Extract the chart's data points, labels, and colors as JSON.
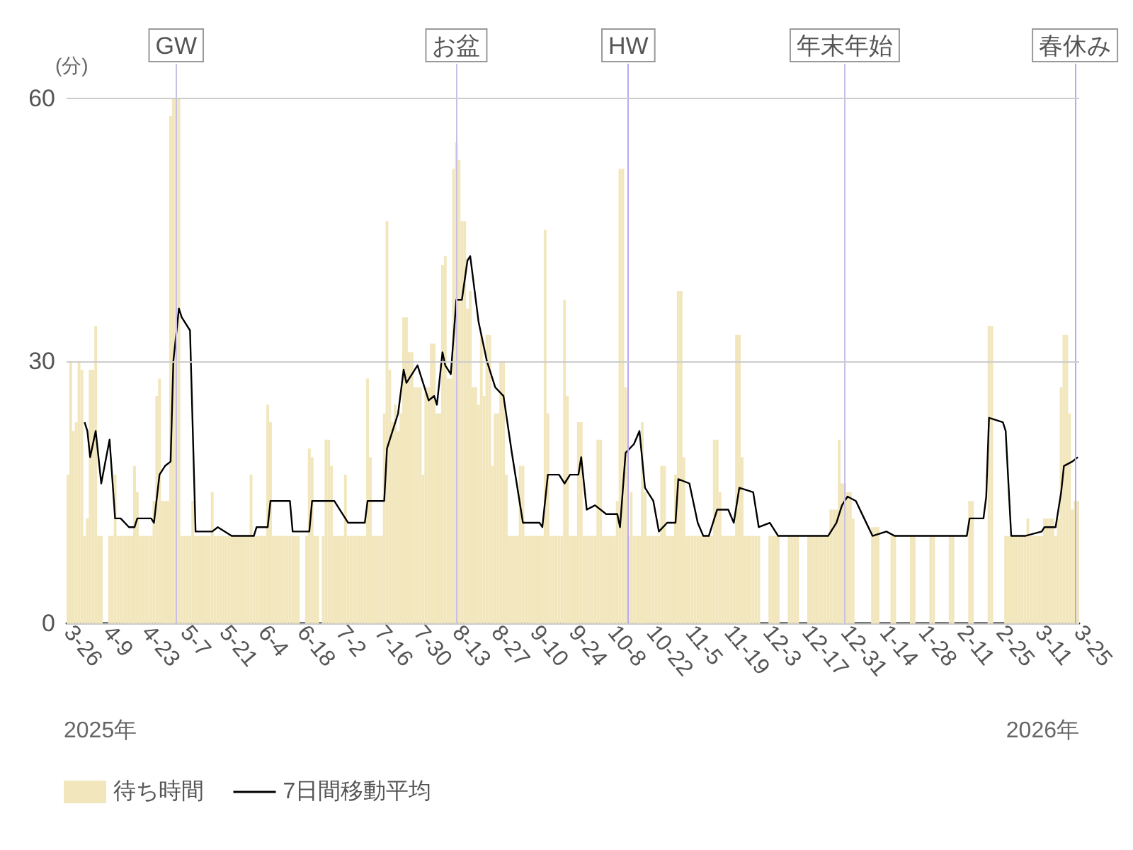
{
  "chart_data": {
    "type": "bar",
    "ylabel": "(分)",
    "legend": "bottom",
    "grid": "y",
    "xlim": [
      "2025-03-25T12:00",
      "2026-03-25T12:00"
    ],
    "xticks": [
      {
        "value": "2025-03-26",
        "label": "3-26"
      },
      {
        "value": "2025-04-09",
        "label": "4-9"
      },
      {
        "value": "2025-04-23",
        "label": "4-23"
      },
      {
        "value": "2025-05-07",
        "label": "5-7"
      },
      {
        "value": "2025-05-21",
        "label": "5-21"
      },
      {
        "value": "2025-06-04",
        "label": "6-4"
      },
      {
        "value": "2025-06-18",
        "label": "6-18"
      },
      {
        "value": "2025-07-02",
        "label": "7-2"
      },
      {
        "value": "2025-07-16",
        "label": "7-16"
      },
      {
        "value": "2025-07-30",
        "label": "7-30"
      },
      {
        "value": "2025-08-13",
        "label": "8-13"
      },
      {
        "value": "2025-08-27",
        "label": "8-27"
      },
      {
        "value": "2025-09-10",
        "label": "9-10"
      },
      {
        "value": "2025-09-24",
        "label": "9-24"
      },
      {
        "value": "2025-10-08",
        "label": "10-8"
      },
      {
        "value": "2025-10-22",
        "label": "10-22"
      },
      {
        "value": "2025-11-05",
        "label": "11-5"
      },
      {
        "value": "2025-11-19",
        "label": "11-19"
      },
      {
        "value": "2025-12-03",
        "label": "12-3"
      },
      {
        "value": "2025-12-17",
        "label": "12-17"
      },
      {
        "value": "2025-12-31",
        "label": "12-31"
      },
      {
        "value": "2026-01-14",
        "label": "1-14"
      },
      {
        "value": "2026-01-28",
        "label": "1-28"
      },
      {
        "value": "2026-02-11",
        "label": "2-11"
      },
      {
        "value": "2026-02-25",
        "label": "2-25"
      },
      {
        "value": "2026-03-11",
        "label": "3-11"
      },
      {
        "value": "2026-03-25",
        "label": "3-25"
      }
    ],
    "ylim": [
      0,
      64
    ],
    "yticks": [
      0,
      30,
      60
    ],
    "annotations": [
      "2025年",
      "2026年"
    ],
    "ref_lines": [
      {
        "axis": "x",
        "value": "2025-05-04",
        "label": "GW",
        "color": "#c8c0e4"
      },
      {
        "axis": "x",
        "value": "2025-08-13",
        "label": "お盆",
        "color": "#c8c0e4"
      },
      {
        "axis": "x",
        "value": "2025-10-14",
        "label": "HW",
        "color": "#b8a8f4"
      },
      {
        "axis": "x",
        "value": "2025-12-31",
        "label": "年末年始",
        "color": "#c8c0e4"
      },
      {
        "axis": "x",
        "value": "2026-03-24",
        "label": "春休み",
        "color": "#b8a8f4"
      }
    ],
    "x": [
      "2025-03-26",
      "2025-03-27",
      "2025-03-28",
      "2025-03-29",
      "2025-03-30",
      "2025-03-31",
      "2025-04-01",
      "2025-04-02",
      "2025-04-03",
      "2025-04-04",
      "2025-04-05",
      "2025-04-06",
      "2025-04-07",
      "2025-04-08",
      "2025-04-09",
      "2025-04-10",
      "2025-04-11",
      "2025-04-12",
      "2025-04-13",
      "2025-04-14",
      "2025-04-15",
      "2025-04-16",
      "2025-04-17",
      "2025-04-18",
      "2025-04-19",
      "2025-04-20",
      "2025-04-21",
      "2025-04-22",
      "2025-04-23",
      "2025-04-24",
      "2025-04-25",
      "2025-04-26",
      "2025-04-27",
      "2025-04-28",
      "2025-04-29",
      "2025-04-30",
      "2025-05-01",
      "2025-05-02",
      "2025-05-03",
      "2025-05-04",
      "2025-05-05",
      "2025-05-06",
      "2025-05-07",
      "2025-05-08",
      "2025-05-09",
      "2025-05-10",
      "2025-05-11",
      "2025-05-12",
      "2025-05-13",
      "2025-05-14",
      "2025-05-15",
      "2025-05-16",
      "2025-05-17",
      "2025-05-18",
      "2025-05-19",
      "2025-05-20",
      "2025-05-21",
      "2025-05-22",
      "2025-05-23",
      "2025-05-24",
      "2025-05-25",
      "2025-05-26",
      "2025-05-27",
      "2025-05-28",
      "2025-05-29",
      "2025-05-30",
      "2025-05-31",
      "2025-06-01",
      "2025-06-02",
      "2025-06-03",
      "2025-06-04",
      "2025-06-05",
      "2025-06-06",
      "2025-06-07",
      "2025-06-08",
      "2025-06-09",
      "2025-06-10",
      "2025-06-11",
      "2025-06-12",
      "2025-06-13",
      "2025-06-14",
      "2025-06-15",
      "2025-06-16",
      "2025-06-17",
      "2025-06-18",
      "2025-06-19",
      "2025-06-20",
      "2025-06-21",
      "2025-06-22",
      "2025-06-23",
      "2025-06-24",
      "2025-06-25",
      "2025-06-26",
      "2025-06-27",
      "2025-06-28",
      "2025-06-29",
      "2025-06-30",
      "2025-07-01",
      "2025-07-02",
      "2025-07-03",
      "2025-07-04",
      "2025-07-05",
      "2025-07-06",
      "2025-07-07",
      "2025-07-08",
      "2025-07-09",
      "2025-07-10",
      "2025-07-11",
      "2025-07-12",
      "2025-07-13",
      "2025-07-14",
      "2025-07-15",
      "2025-07-16",
      "2025-07-17",
      "2025-07-18",
      "2025-07-19",
      "2025-07-20",
      "2025-07-21",
      "2025-07-22",
      "2025-07-23",
      "2025-07-24",
      "2025-07-25",
      "2025-07-26",
      "2025-07-27",
      "2025-07-28",
      "2025-07-29",
      "2025-07-30",
      "2025-07-31",
      "2025-08-01",
      "2025-08-02",
      "2025-08-03",
      "2025-08-04",
      "2025-08-05",
      "2025-08-06",
      "2025-08-07",
      "2025-08-08",
      "2025-08-09",
      "2025-08-10",
      "2025-08-11",
      "2025-08-12",
      "2025-08-13",
      "2025-08-14",
      "2025-08-15",
      "2025-08-16",
      "2025-08-17",
      "2025-08-18",
      "2025-08-19",
      "2025-08-20",
      "2025-08-21",
      "2025-08-22",
      "2025-08-23",
      "2025-08-24",
      "2025-08-25",
      "2025-08-26",
      "2025-08-27",
      "2025-08-28",
      "2025-08-29",
      "2025-08-30",
      "2025-08-31",
      "2025-09-01",
      "2025-09-02",
      "2025-09-03",
      "2025-09-04",
      "2025-09-05",
      "2025-09-06",
      "2025-09-07",
      "2025-09-08",
      "2025-09-09",
      "2025-09-10",
      "2025-09-11",
      "2025-09-12",
      "2025-09-13",
      "2025-09-14",
      "2025-09-15",
      "2025-09-16",
      "2025-09-17",
      "2025-09-18",
      "2025-09-19",
      "2025-09-20",
      "2025-09-21",
      "2025-09-22",
      "2025-09-23",
      "2025-09-24",
      "2025-09-25",
      "2025-09-26",
      "2025-09-27",
      "2025-09-28",
      "2025-09-29",
      "2025-09-30",
      "2025-10-01",
      "2025-10-02",
      "2025-10-03",
      "2025-10-04",
      "2025-10-05",
      "2025-10-06",
      "2025-10-07",
      "2025-10-08",
      "2025-10-09",
      "2025-10-10",
      "2025-10-11",
      "2025-10-12",
      "2025-10-13",
      "2025-10-14",
      "2025-10-15",
      "2025-10-16",
      "2025-10-17",
      "2025-10-18",
      "2025-10-19",
      "2025-10-20",
      "2025-10-21",
      "2025-10-22",
      "2025-10-23",
      "2025-10-24",
      "2025-10-25",
      "2025-10-26",
      "2025-10-27",
      "2025-10-28",
      "2025-10-29",
      "2025-10-30",
      "2025-10-31",
      "2025-11-01",
      "2025-11-02",
      "2025-11-03",
      "2025-11-04",
      "2025-11-05",
      "2025-11-06",
      "2025-11-07",
      "2025-11-08",
      "2025-11-09",
      "2025-11-10",
      "2025-11-11",
      "2025-11-12",
      "2025-11-13",
      "2025-11-14",
      "2025-11-15",
      "2025-11-16",
      "2025-11-17",
      "2025-11-18",
      "2025-11-19",
      "2025-11-20",
      "2025-11-21",
      "2025-11-22",
      "2025-11-23",
      "2025-11-24",
      "2025-11-25",
      "2025-11-26",
      "2025-11-27",
      "2025-11-28",
      "2025-11-29",
      "2025-11-30",
      "2025-12-01",
      "2025-12-02",
      "2025-12-03",
      "2025-12-04",
      "2025-12-05",
      "2025-12-06",
      "2025-12-07",
      "2025-12-08",
      "2025-12-09",
      "2025-12-10",
      "2025-12-11",
      "2025-12-12",
      "2025-12-13",
      "2025-12-14",
      "2025-12-15",
      "2025-12-16",
      "2025-12-17",
      "2025-12-18",
      "2025-12-19",
      "2025-12-20",
      "2025-12-21",
      "2025-12-22",
      "2025-12-23",
      "2025-12-24",
      "2025-12-25",
      "2025-12-26",
      "2025-12-27",
      "2025-12-28",
      "2025-12-29",
      "2025-12-30",
      "2025-12-31",
      "2026-01-01",
      "2026-01-02",
      "2026-01-03",
      "2026-01-04",
      "2026-01-05",
      "2026-01-06",
      "2026-01-07",
      "2026-01-08",
      "2026-01-09",
      "2026-01-10",
      "2026-01-11",
      "2026-01-12",
      "2026-01-13",
      "2026-01-14",
      "2026-01-15",
      "2026-01-16",
      "2026-01-17",
      "2026-01-18",
      "2026-01-19",
      "2026-01-20",
      "2026-01-21",
      "2026-01-22",
      "2026-01-23",
      "2026-01-24",
      "2026-01-25",
      "2026-01-26",
      "2026-01-27",
      "2026-01-28",
      "2026-01-29",
      "2026-01-30",
      "2026-01-31",
      "2026-02-01",
      "2026-02-02",
      "2026-02-03",
      "2026-02-04",
      "2026-02-05",
      "2026-02-06",
      "2026-02-07",
      "2026-02-08",
      "2026-02-09",
      "2026-02-10",
      "2026-02-11",
      "2026-02-12",
      "2026-02-13",
      "2026-02-14",
      "2026-02-15",
      "2026-02-16",
      "2026-02-17",
      "2026-02-18",
      "2026-02-19",
      "2026-02-20",
      "2026-02-21",
      "2026-02-22",
      "2026-02-23",
      "2026-02-24",
      "2026-02-25",
      "2026-02-26",
      "2026-02-27",
      "2026-02-28",
      "2026-03-01",
      "2026-03-02",
      "2026-03-03",
      "2026-03-04",
      "2026-03-05",
      "2026-03-06",
      "2026-03-07",
      "2026-03-08",
      "2026-03-09",
      "2026-03-10",
      "2026-03-11",
      "2026-03-12",
      "2026-03-13",
      "2026-03-14",
      "2026-03-15",
      "2026-03-16",
      "2026-03-17",
      "2026-03-18",
      "2026-03-19",
      "2026-03-20",
      "2026-03-21",
      "2026-03-22",
      "2026-03-23",
      "2026-03-24",
      "2026-03-25"
    ],
    "series": [
      {
        "name": "待ち時間",
        "color": "#f2e6bc",
        "values": [
          17,
          30,
          22,
          23,
          30,
          29,
          10,
          12,
          29,
          29,
          34,
          10,
          10,
          null,
          null,
          10,
          10,
          17,
          10,
          10,
          10,
          10,
          10,
          10,
          18,
          15,
          10,
          10,
          10,
          10,
          10,
          14,
          26,
          28,
          14,
          14,
          14,
          58,
          60,
          60,
          60,
          10,
          10,
          10,
          10,
          14,
          10,
          10,
          10,
          10,
          10,
          10,
          15,
          10,
          10,
          10,
          10,
          10,
          10,
          10,
          10,
          10,
          10,
          10,
          10,
          10,
          17,
          10,
          10,
          10,
          10,
          10,
          25,
          23,
          10,
          10,
          10,
          10,
          10,
          10,
          10,
          10,
          10,
          10,
          null,
          null,
          10,
          20,
          19,
          10,
          10,
          null,
          10,
          21,
          21,
          18,
          10,
          10,
          10,
          10,
          17,
          10,
          10,
          10,
          10,
          10,
          10,
          10,
          28,
          19,
          10,
          10,
          10,
          10,
          24,
          46,
          29,
          23,
          25,
          22,
          24,
          35,
          35,
          31,
          31,
          27,
          27,
          27,
          17,
          27,
          27,
          32,
          32,
          24,
          24,
          41,
          42,
          28,
          28,
          52,
          55,
          53,
          46,
          46,
          36,
          38,
          27,
          27,
          25,
          33,
          26,
          33,
          33,
          18,
          24,
          24,
          30,
          30,
          17,
          10,
          10,
          10,
          10,
          18,
          18,
          10,
          10,
          10,
          10,
          10,
          10,
          10,
          45,
          24,
          10,
          10,
          10,
          10,
          10,
          37,
          26,
          10,
          10,
          10,
          23,
          23,
          10,
          10,
          10,
          10,
          10,
          21,
          21,
          10,
          10,
          10,
          10,
          10,
          14,
          52,
          52,
          27,
          10,
          15,
          10,
          10,
          10,
          23,
          15,
          10,
          10,
          10,
          10,
          10,
          18,
          18,
          10,
          10,
          10,
          17,
          38,
          38,
          19,
          10,
          10,
          10,
          10,
          10,
          10,
          10,
          10,
          10,
          10,
          21,
          21,
          15,
          10,
          10,
          10,
          10,
          10,
          33,
          33,
          19,
          10,
          10,
          10,
          10,
          10,
          10,
          null,
          null,
          null,
          10,
          10,
          10,
          10,
          null,
          null,
          null,
          10,
          10,
          10,
          10,
          null,
          null,
          null,
          10,
          10,
          10,
          10,
          10,
          10,
          10,
          10,
          13,
          13,
          13,
          21,
          16,
          16,
          15,
          15,
          12,
          null,
          null,
          null,
          null,
          null,
          null,
          11,
          11,
          11,
          null,
          null,
          null,
          null,
          10,
          10,
          null,
          null,
          null,
          null,
          null,
          10,
          10,
          null,
          null,
          null,
          null,
          null,
          10,
          10,
          null,
          null,
          null,
          null,
          null,
          10,
          10,
          null,
          null,
          null,
          null,
          null,
          14,
          14,
          null,
          null,
          null,
          null,
          null,
          34,
          34,
          null,
          null,
          null,
          null,
          10,
          10,
          10,
          10,
          10,
          10,
          10,
          10,
          12,
          10,
          10,
          10,
          10,
          10,
          12,
          12,
          12,
          12,
          10,
          12,
          27,
          33,
          33,
          24,
          13,
          14,
          14
        ]
      },
      {
        "name": "7日間移動平均",
        "type": "line",
        "color": "#000000",
        "x": [
          "2025-04-01",
          "2025-04-02",
          "2025-04-03",
          "2025-04-05",
          "2025-04-07",
          "2025-04-10",
          "2025-04-12",
          "2025-04-14",
          "2025-04-17",
          "2025-04-19",
          "2025-04-20",
          "2025-04-25",
          "2025-04-26",
          "2025-04-28",
          "2025-04-30",
          "2025-05-02",
          "2025-05-03",
          "2025-05-05",
          "2025-05-06",
          "2025-05-09",
          "2025-05-11",
          "2025-05-17",
          "2025-05-19",
          "2025-05-24",
          "2025-06-01",
          "2025-06-02",
          "2025-06-06",
          "2025-06-07",
          "2025-06-14",
          "2025-06-15",
          "2025-06-21",
          "2025-06-22",
          "2025-06-30",
          "2025-07-02",
          "2025-07-05",
          "2025-07-11",
          "2025-07-12",
          "2025-07-18",
          "2025-07-19",
          "2025-07-23",
          "2025-07-25",
          "2025-07-26",
          "2025-07-30",
          "2025-08-03",
          "2025-08-05",
          "2025-08-06",
          "2025-08-08",
          "2025-08-09",
          "2025-08-11",
          "2025-08-13",
          "2025-08-15",
          "2025-08-17",
          "2025-08-18",
          "2025-08-21",
          "2025-08-24",
          "2025-08-27",
          "2025-08-30",
          "2025-09-02",
          "2025-09-06",
          "2025-09-12",
          "2025-09-13",
          "2025-09-15",
          "2025-09-19",
          "2025-09-21",
          "2025-09-23",
          "2025-09-26",
          "2025-09-27",
          "2025-09-29",
          "2025-10-02",
          "2025-10-06",
          "2025-10-10",
          "2025-10-11",
          "2025-10-13",
          "2025-10-16",
          "2025-10-18",
          "2025-10-20",
          "2025-10-23",
          "2025-10-25",
          "2025-10-28",
          "2025-10-31",
          "2025-11-01",
          "2025-11-05",
          "2025-11-08",
          "2025-11-10",
          "2025-11-12",
          "2025-11-15",
          "2025-11-19",
          "2025-11-21",
          "2025-11-23",
          "2025-11-28",
          "2025-11-30",
          "2025-12-04",
          "2025-12-07",
          "2025-12-25",
          "2025-12-28",
          "2025-12-30",
          "2026-01-01",
          "2026-01-04",
          "2026-01-07",
          "2026-01-10",
          "2026-01-15",
          "2026-01-18",
          "2026-02-13",
          "2026-02-14",
          "2026-02-19",
          "2026-02-20",
          "2026-02-21",
          "2026-02-26",
          "2026-02-27",
          "2026-03-01",
          "2026-03-06",
          "2026-03-12",
          "2026-03-13",
          "2026-03-17",
          "2026-03-19",
          "2026-03-20",
          "2026-03-23",
          "2026-03-25"
        ],
        "values": [
          23,
          22,
          19,
          22,
          16,
          21,
          12,
          12,
          11,
          11,
          12,
          12,
          11.5,
          17,
          18,
          18.5,
          30,
          36,
          35,
          33.5,
          10.5,
          10.5,
          11,
          10,
          10,
          11,
          11,
          14,
          14,
          10.5,
          10.5,
          14,
          14,
          13,
          11.5,
          11.5,
          14,
          14,
          20,
          24,
          29,
          27.5,
          29.5,
          25.5,
          26,
          25,
          31,
          29.5,
          28.5,
          37,
          37,
          41.5,
          42,
          34.5,
          30,
          27,
          26,
          19.5,
          11.5,
          11.5,
          11,
          17,
          17,
          16,
          17,
          17,
          19,
          13,
          13.5,
          12.5,
          12.5,
          11,
          19.5,
          20.5,
          22,
          15.5,
          14,
          10.5,
          11.5,
          11.5,
          16.5,
          16,
          11.5,
          10,
          10,
          13,
          13,
          11.5,
          15.5,
          15,
          11,
          11.5,
          10,
          10,
          11.5,
          13.5,
          14.5,
          14,
          12,
          10,
          10.5,
          10,
          10,
          12,
          12,
          14.5,
          23.5,
          23,
          22,
          10,
          10,
          10.5,
          11,
          11,
          15,
          18,
          18.5,
          19
        ]
      }
    ]
  }
}
